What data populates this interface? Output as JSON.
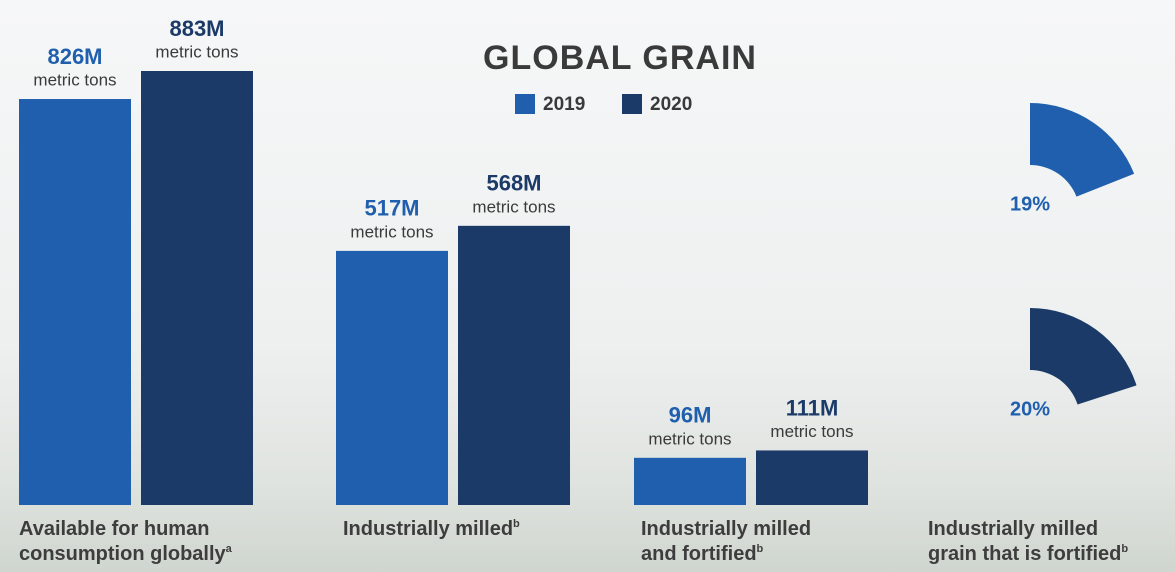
{
  "chart_data": [
    {
      "type": "bar",
      "title": "GLOBAL GRAIN",
      "categories": [
        [
          "Available for human",
          "consumption globally"
        ],
        [
          "Industrially milled"
        ],
        [
          "Industrially milled",
          "and fortified"
        ]
      ],
      "footnotes": [
        "a",
        "b",
        "b"
      ],
      "unit_label": "metric tons",
      "series": [
        {
          "name": "2019",
          "color": "#1f5fad",
          "values": [
            826,
            517,
            96
          ],
          "value_labels": [
            "826M",
            "517M",
            "96M"
          ]
        },
        {
          "name": "2020",
          "color": "#1b3a68",
          "values": [
            883,
            568,
            111
          ],
          "value_labels": [
            "883M",
            "568M",
            "111M"
          ]
        }
      ]
    },
    {
      "type": "pie",
      "label": [
        "Industrially milled",
        "grain that is fortified"
      ],
      "footnote": "b",
      "values": [
        19,
        20
      ],
      "value_labels": [
        "19%",
        "20%"
      ],
      "colors": [
        "#1f5fad",
        "#1b3a68"
      ]
    }
  ]
}
